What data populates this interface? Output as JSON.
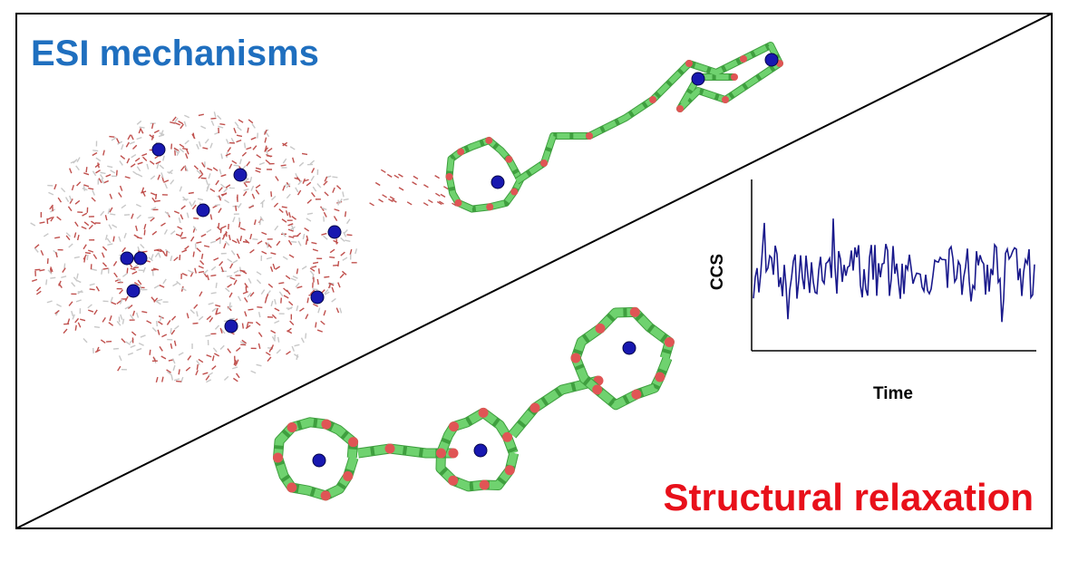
{
  "header": {
    "title": "ESI mechanisms"
  },
  "footer": {
    "title": "Structural relaxation"
  },
  "inset": {
    "y_label": "CCS",
    "x_label": "Time"
  }
}
